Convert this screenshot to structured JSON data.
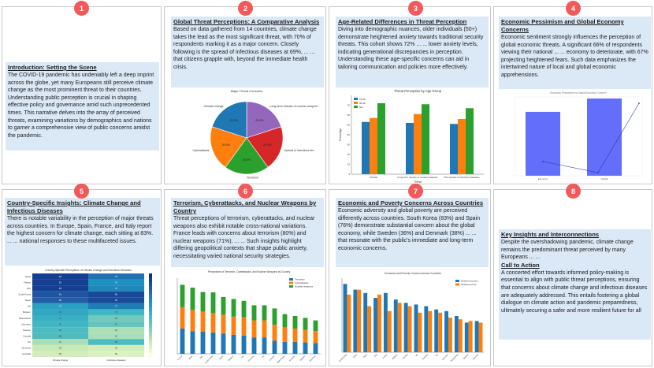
{
  "panels": [
    {
      "badge": "1",
      "title": "Introduction: Setting the Scene",
      "body": "The COVID-19 pandemic has undeniably left a deep imprint across the globe, yet many Europeans still perceive climate change as the most prominent threat to their countries. Understanding public perception is crucial in shaping effective policy and governance amid such unprecedented times. This narrative delves into the array of perceived threats, examining variations by demographics and nations to garner a comprehensive view of public concerns amidst the pandemic."
    },
    {
      "badge": "2",
      "title": "Global Threat Perceptions: A Comparative Analysis",
      "body": "Based on data gathered from 14 countries, climate change takes the lead as the most significant threat, with 70% of respondents marking it as a major concern. Closely following is the spread of infectious diseases at 69%, ... ... that citizens grapple with, beyond the immediate health crisis."
    },
    {
      "badge": "3",
      "title": "Age-Related Differences in Threat Perception",
      "body": "Diving into demographic nuances, older individuals (50+) demonstrate heightened anxiety towards traditional security threats. This cohort shows 72% ... ... lower anxiety levels, indicating generational discrepancies in perception. Understanding these age-specific concerns can aid in tailoring communication and policies more effectively."
    },
    {
      "badge": "4",
      "title": "Economic Pessimism and Global Economy Concerns",
      "body": "Economic sentiment strongly influences the perception of global economic threats. A significant 66% of respondents viewing their national ... ... economy to deteriorate, with 67% projecting heightened fears. Such data emphasizes the intertwined nature of local and global economic apprehensions."
    },
    {
      "badge": "5",
      "title": "Country-Specific Insights: Climate Change and Infectious Diseases",
      "body": "There is notable variability in the perception of major threats across countries. In Europe, Spain, France, and Italy report the highest concern for climate change, each sitting at 83%. ... ... national responses to these multifaceted issues."
    },
    {
      "badge": "6",
      "title": "Terrorism, Cyberattacks, and Nuclear Weapons by Country",
      "body": "Threat perceptions of terrorism, cyberattacks, and nuclear weapons also exhibit notable cross-national variations. France leads with concerns about terrorism (80%) and nuclear weapons (71%), ... ... Such insights highlight differing geopolitical contexts that shape public anxiety, necessitating varied national security strategies."
    },
    {
      "badge": "7",
      "title": "Economic and Poverty Concerns Across Countries",
      "body": "Economic adversity and global poverty are perceived differently across countries. South Korea (83%) and Spain (76%) demonstrate substantial concern about the global economy, while Sweden (36%) and Denmark (38%) ... ... that resonate with the public's immediate and long-term economic concerns."
    },
    {
      "badge": "8",
      "title": "Key Insights and Interconnections",
      "body": "Despite the overshadowing pandemic, climate change remains the predominant threat perceived by many Europeans ... ...",
      "title2": "Call to Action",
      "body2": "A concerted effort towards informed policy-making is essential to align with public threat perceptions, ensuring that concerns about climate change and infectious diseases are adequately addressed. This entails fostering a global dialogue on climate action and pandemic preparedness, ultimately securing a safer and more resilient future for all"
    }
  ],
  "chart_data": [
    {
      "type": "pie",
      "title": "Major Threat Concerns",
      "labels": [
        "Spread of infectious diseases",
        "Terrorism",
        "Cyberattacks",
        "Climate change",
        "Long-term release of nuclear weapons"
      ],
      "label_short": [
        "Spread of infectious dis...",
        "Terrorism",
        "Cyberattacks",
        "Climate change",
        "Long-term release of nuclear weapons"
      ],
      "values": [
        20.0,
        20.0,
        20.0,
        20.0,
        20.0
      ],
      "value_labels": [
        "20.0%",
        "20.0%",
        "20.0%",
        "20.0%",
        "20.0%"
      ],
      "colors": [
        "#d62728",
        "#2ca02c",
        "#ff7f0e",
        "#1f77b4",
        "#9467bd"
      ]
    },
    {
      "type": "bar",
      "title": "Threat Perception by Age Group",
      "xlabel": "Threat",
      "ylabel": "Percentage",
      "categories": [
        "Climate",
        "Long-term release of nuclear weapons",
        "The spread of infectious diseases"
      ],
      "ylim": [
        0,
        80
      ],
      "yticks": [
        "0",
        "10",
        "20",
        "30",
        "40",
        "50",
        "60",
        "70"
      ],
      "series": [
        {
          "name": "18-29",
          "values": [
            53,
            52,
            51
          ],
          "color": "#1f77b4"
        },
        {
          "name": "30-49",
          "values": [
            57,
            61,
            56
          ],
          "color": "#ff7f0e"
        },
        {
          "name": "50+",
          "values": [
            72,
            71,
            67
          ],
          "color": "#2ca02c"
        }
      ]
    },
    {
      "type": "bar",
      "title": "Economic Pessimism vs Global Economy Concern",
      "categories": [
        "Economy",
        "Global"
      ],
      "values": [
        66,
        67
      ],
      "ylim": [
        0,
        70
      ],
      "line_values": [
        40,
        80
      ],
      "color": "#636efa"
    },
    {
      "type": "heatmap",
      "title": "Country-Specific Perceptions of Climate Change and Infectious Diseases",
      "rows": [
        "Spain",
        "France",
        "Italy",
        "South Korea",
        "Japan",
        "UK",
        "Belgium",
        "Netherlands",
        "Germany",
        "Sweden",
        "Canada",
        "US",
        "Denmark",
        "Australia"
      ],
      "columns": [
        "Climate change",
        "Infectious diseases"
      ],
      "values": [
        [
          83,
          78
        ],
        [
          83,
          75
        ],
        [
          83,
          76
        ],
        [
          81,
          82
        ],
        [
          80,
          82
        ],
        [
          73,
          77
        ],
        [
          72,
          70
        ],
        [
          71,
          66
        ],
        [
          70,
          67
        ],
        [
          69,
          62
        ],
        [
          69,
          62
        ],
        [
          62,
          69
        ],
        [
          60,
          59
        ],
        [
          59,
          58
        ]
      ],
      "vmin": 55,
      "vmax": 85
    },
    {
      "type": "bar",
      "title": "Perceptions of Terrorism, Cyberattacks, and Nuclear Weapons by Country",
      "stacked": true,
      "categories": [
        "France",
        "Spain",
        "Italy",
        "South Korea",
        "Japan",
        "Belgium",
        "UK",
        "Germany",
        "US",
        "Canada",
        "Netherlands",
        "Australia",
        "Sweden",
        "Denmark"
      ],
      "series": [
        {
          "name": "Terrorism",
          "values": [
            80,
            72,
            70,
            68,
            64,
            60,
            58,
            52,
            52,
            42,
            38,
            38,
            36,
            34
          ],
          "color": "#1f77b4"
        },
        {
          "name": "Cyberattacks",
          "values": [
            68,
            68,
            64,
            62,
            60,
            58,
            58,
            54,
            54,
            50,
            46,
            42,
            40,
            38
          ],
          "color": "#ff7f0e"
        },
        {
          "name": "Nuclear weapons",
          "values": [
            71,
            70,
            62,
            65,
            56,
            56,
            52,
            48,
            48,
            52,
            42,
            40,
            38,
            34
          ],
          "color": "#2ca02c"
        }
      ],
      "ylim": [
        0,
        240
      ]
    },
    {
      "type": "bar",
      "title": "Economic and Poverty Concerns Across Countries",
      "categories": [
        "South Korea",
        "Spain",
        "Japan",
        "Italy",
        "France",
        "Belgium",
        "Canada",
        "UK",
        "Australia",
        "US",
        "Germany",
        "Netherlands",
        "Sweden",
        "Denmark"
      ],
      "series": [
        {
          "name": "Global economy",
          "values": [
            83,
            76,
            72,
            66,
            72,
            64,
            60,
            58,
            56,
            52,
            50,
            44,
            36,
            38
          ],
          "color": "#1f77b4"
        },
        {
          "name": "Global poverty",
          "values": [
            70,
            76,
            56,
            70,
            50,
            60,
            56,
            48,
            50,
            48,
            42,
            40,
            38,
            36
          ],
          "color": "#ff7f0e"
        }
      ],
      "ylim": [
        0,
        90
      ]
    }
  ]
}
